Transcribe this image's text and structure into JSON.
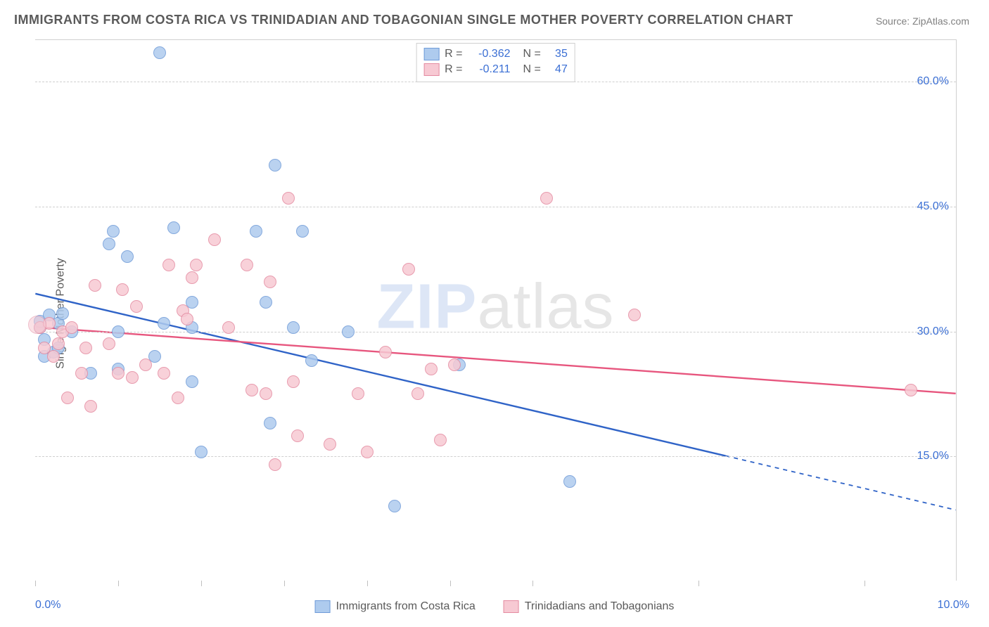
{
  "title": "IMMIGRANTS FROM COSTA RICA VS TRINIDADIAN AND TOBAGONIAN SINGLE MOTHER POVERTY CORRELATION CHART",
  "source": "Source: ZipAtlas.com",
  "ylabel": "Single Mother Poverty",
  "watermark_a": "ZIP",
  "watermark_b": "atlas",
  "chart": {
    "type": "scatter",
    "background_color": "#ffffff",
    "grid_color": "#cfcfcf",
    "border_color": "#d0d0d0",
    "xlim": [
      0,
      10
    ],
    "ylim": [
      0,
      65
    ],
    "xticks": [
      0.0,
      0.9,
      1.8,
      2.7,
      3.6,
      4.5,
      5.4,
      7.2,
      9.0
    ],
    "yticks": [
      15.0,
      30.0,
      45.0,
      60.0
    ],
    "ytick_labels": [
      "15.0%",
      "30.0%",
      "45.0%",
      "60.0%"
    ],
    "x_left_label": "0.0%",
    "x_right_label": "10.0%",
    "marker_radius": 9,
    "marker_stroke": 1.6,
    "series": [
      {
        "name": "Immigrants from Costa Rica",
        "fill": "#aecbee",
        "stroke": "#6f9bd8",
        "line_color": "#2f63c7",
        "R": "-0.362",
        "N": "35",
        "trend": {
          "y_at_x0": 34.5,
          "y_at_x10": 8.5,
          "solid_until_x": 7.5
        },
        "points": [
          [
            0.05,
            30.5
          ],
          [
            0.05,
            31.2
          ],
          [
            0.1,
            29.0
          ],
          [
            0.1,
            27.0
          ],
          [
            0.15,
            32.0
          ],
          [
            0.2,
            27.5
          ],
          [
            0.25,
            28.0
          ],
          [
            0.25,
            31.0
          ],
          [
            0.3,
            32.2
          ],
          [
            0.4,
            30.0
          ],
          [
            0.6,
            25.0
          ],
          [
            0.8,
            40.5
          ],
          [
            0.85,
            42.0
          ],
          [
            0.9,
            25.5
          ],
          [
            0.9,
            30.0
          ],
          [
            1.0,
            39.0
          ],
          [
            1.3,
            27.0
          ],
          [
            1.35,
            63.5
          ],
          [
            1.4,
            31.0
          ],
          [
            1.5,
            42.5
          ],
          [
            1.7,
            24.0
          ],
          [
            1.7,
            33.5
          ],
          [
            1.7,
            30.5
          ],
          [
            1.8,
            15.5
          ],
          [
            2.4,
            42.0
          ],
          [
            2.5,
            33.5
          ],
          [
            2.55,
            19.0
          ],
          [
            2.6,
            50.0
          ],
          [
            2.8,
            30.5
          ],
          [
            2.9,
            42.0
          ],
          [
            3.0,
            26.5
          ],
          [
            3.4,
            30.0
          ],
          [
            3.9,
            9.0
          ],
          [
            4.6,
            26.0
          ],
          [
            5.8,
            12.0
          ]
        ]
      },
      {
        "name": "Trinidadians and Tobagonians",
        "fill": "#f7c9d3",
        "stroke": "#e48ba1",
        "line_color": "#e7567e",
        "R": "-0.211",
        "N": "47",
        "trend": {
          "y_at_x0": 30.5,
          "y_at_x10": 22.5,
          "solid_until_x": 10
        },
        "points": [
          [
            0.05,
            30.5
          ],
          [
            0.1,
            28.0
          ],
          [
            0.15,
            31.0
          ],
          [
            0.2,
            27.0
          ],
          [
            0.25,
            28.5
          ],
          [
            0.3,
            30.0
          ],
          [
            0.35,
            22.0
          ],
          [
            0.4,
            30.5
          ],
          [
            0.5,
            25.0
          ],
          [
            0.55,
            28.0
          ],
          [
            0.6,
            21.0
          ],
          [
            0.65,
            35.5
          ],
          [
            0.8,
            28.5
          ],
          [
            0.9,
            25.0
          ],
          [
            0.95,
            35.0
          ],
          [
            1.05,
            24.5
          ],
          [
            1.1,
            33.0
          ],
          [
            1.2,
            26.0
          ],
          [
            1.4,
            25.0
          ],
          [
            1.45,
            38.0
          ],
          [
            1.55,
            22.0
          ],
          [
            1.6,
            32.5
          ],
          [
            1.65,
            31.5
          ],
          [
            1.7,
            36.5
          ],
          [
            1.75,
            38.0
          ],
          [
            1.95,
            41.0
          ],
          [
            2.1,
            30.5
          ],
          [
            2.3,
            38.0
          ],
          [
            2.35,
            23.0
          ],
          [
            2.5,
            22.5
          ],
          [
            2.55,
            36.0
          ],
          [
            2.6,
            14.0
          ],
          [
            2.75,
            46.0
          ],
          [
            2.8,
            24.0
          ],
          [
            2.85,
            17.5
          ],
          [
            3.2,
            16.5
          ],
          [
            3.5,
            22.5
          ],
          [
            3.6,
            15.5
          ],
          [
            3.8,
            27.5
          ],
          [
            4.05,
            37.5
          ],
          [
            4.15,
            22.5
          ],
          [
            4.3,
            25.5
          ],
          [
            4.4,
            17.0
          ],
          [
            4.55,
            26.0
          ],
          [
            5.55,
            46.0
          ],
          [
            6.5,
            32.0
          ],
          [
            9.5,
            23.0
          ]
        ]
      }
    ]
  },
  "colors": {
    "text": "#5a5a5a",
    "axis_label": "#3b6fd4"
  }
}
